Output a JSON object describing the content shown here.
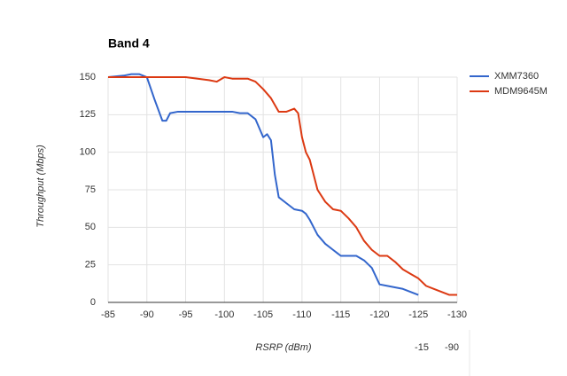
{
  "chart_data": {
    "type": "line",
    "title": "Band 4",
    "x_label": "RSRP (dBm)",
    "y_label": "Throughput (Mbps)",
    "annotations": [
      "-15",
      "-90"
    ],
    "xlim": [
      -85,
      -130
    ],
    "xticks": [
      -85,
      -90,
      -95,
      -100,
      -105,
      -110,
      -115,
      -120,
      -125,
      -130
    ],
    "ylim": [
      0,
      150
    ],
    "yticks": [
      0,
      25,
      50,
      75,
      100,
      125,
      150
    ],
    "grid": true,
    "legend": "right",
    "series": [
      {
        "name": "XMM7360",
        "color": "#3366cc",
        "x": [
          -85,
          -87,
          -88,
          -89,
          -90,
          -91,
          -92,
          -92.5,
          -93,
          -94,
          -100,
          -101,
          -102,
          -103,
          -104,
          -105,
          -105.5,
          -106,
          -106.5,
          -107,
          -108,
          -109,
          -110,
          -110.5,
          -111,
          -112,
          -113,
          -114,
          -115,
          -117,
          -118,
          -119,
          -120,
          -121,
          -123,
          -124,
          -125
        ],
        "values": [
          150,
          151,
          152,
          152,
          150,
          135,
          121,
          121,
          126,
          127,
          127,
          127,
          126,
          126,
          122,
          110,
          112,
          108,
          85,
          70,
          66,
          62,
          61,
          59,
          55,
          45,
          39,
          35,
          31,
          31,
          28,
          23,
          12,
          11,
          9,
          7,
          5
        ]
      },
      {
        "name": "MDM9645M",
        "color": "#dc3912",
        "x": [
          -85,
          -92,
          -95,
          -98,
          -99,
          -100,
          -101,
          -103,
          -104,
          -105,
          -106,
          -107,
          -108,
          -109,
          -109.5,
          -110,
          -110.5,
          -111,
          -112,
          -113,
          -114,
          -115,
          -116,
          -117,
          -118,
          -119,
          -120,
          -121,
          -122,
          -123,
          -124,
          -125,
          -126,
          -127,
          -128,
          -129,
          -130
        ],
        "values": [
          150,
          150,
          150,
          148,
          147,
          150,
          149,
          149,
          147,
          142,
          136,
          127,
          127,
          129,
          126,
          110,
          100,
          95,
          75,
          67,
          62,
          61,
          56,
          50,
          41,
          35,
          31,
          31,
          27,
          22,
          19,
          16,
          11,
          9,
          7,
          5,
          5
        ]
      }
    ]
  }
}
